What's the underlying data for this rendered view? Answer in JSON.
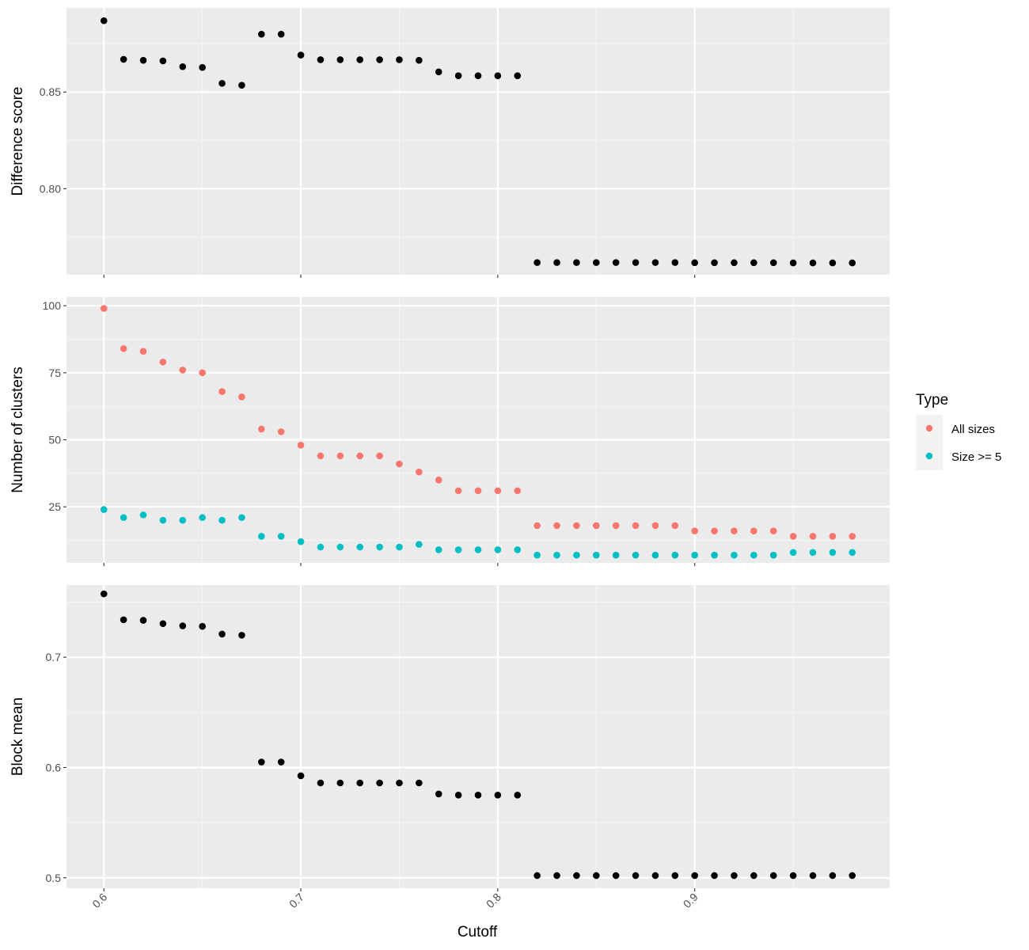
{
  "colors": {
    "panel_bg": "#ebebeb",
    "grid_major": "#ffffff",
    "grid_minor": "#f5f5f5",
    "tick": "#333333",
    "all_sizes": "#f8766d",
    "size_ge_5": "#00bfc4",
    "black_points": "#000000"
  },
  "chart_data": [
    {
      "type": "scatter",
      "panel": "top",
      "ylabel": "Difference score",
      "ylim": [
        0.7555,
        0.8935
      ],
      "yticks": [
        0.8,
        0.85
      ],
      "ytick_labels": [
        "0.80",
        "0.85"
      ],
      "x": [
        0.6,
        0.61,
        0.62,
        0.63,
        0.64,
        0.65,
        0.66,
        0.67,
        0.68,
        0.69,
        0.7,
        0.71,
        0.72,
        0.73,
        0.74,
        0.75,
        0.76,
        0.77,
        0.78,
        0.79,
        0.8,
        0.81,
        0.82,
        0.83,
        0.84,
        0.85,
        0.86,
        0.87,
        0.88,
        0.89,
        0.9,
        0.91,
        0.92,
        0.93,
        0.94,
        0.95,
        0.96,
        0.97,
        0.98
      ],
      "series": [
        {
          "color_key": "black_points",
          "values": [
            0.8869,
            0.8669,
            0.8664,
            0.8661,
            0.8631,
            0.8627,
            0.8545,
            0.8535,
            0.8799,
            0.8799,
            0.8691,
            0.8667,
            0.8667,
            0.8667,
            0.8667,
            0.8667,
            0.8664,
            0.8604,
            0.8584,
            0.8584,
            0.8584,
            0.8584,
            0.7618,
            0.7618,
            0.7618,
            0.7618,
            0.7618,
            0.7618,
            0.7618,
            0.7618,
            0.7617,
            0.7617,
            0.7617,
            0.7617,
            0.7617,
            0.7616,
            0.7616,
            0.7616,
            0.7616
          ]
        }
      ]
    },
    {
      "type": "scatter",
      "panel": "middle",
      "ylabel": "Number of clusters",
      "ylim": [
        4.1,
        103.3
      ],
      "yticks": [
        25,
        50,
        75,
        100
      ],
      "ytick_labels": [
        "25",
        "50",
        "75",
        "100"
      ],
      "x": [
        0.6,
        0.61,
        0.62,
        0.63,
        0.64,
        0.65,
        0.66,
        0.67,
        0.68,
        0.69,
        0.7,
        0.71,
        0.72,
        0.73,
        0.74,
        0.75,
        0.76,
        0.77,
        0.78,
        0.79,
        0.8,
        0.81,
        0.82,
        0.83,
        0.84,
        0.85,
        0.86,
        0.87,
        0.88,
        0.89,
        0.9,
        0.91,
        0.92,
        0.93,
        0.94,
        0.95,
        0.96,
        0.97,
        0.98
      ],
      "series": [
        {
          "name": "All sizes",
          "color_key": "all_sizes",
          "values": [
            99,
            84,
            83,
            79,
            76,
            75,
            68,
            66,
            54,
            53,
            48,
            44,
            44,
            44,
            44,
            41,
            38,
            35,
            31,
            31,
            31,
            31,
            18,
            18,
            18,
            18,
            18,
            18,
            18,
            18,
            16,
            16,
            16,
            16,
            16,
            14,
            14,
            14,
            14
          ]
        },
        {
          "name": "Size >= 5",
          "color_key": "size_ge_5",
          "values": [
            24,
            21,
            22,
            20,
            20,
            21,
            20,
            21,
            14,
            14,
            12,
            10,
            10,
            10,
            10,
            10,
            11,
            9,
            9,
            9,
            9,
            9,
            7,
            7,
            7,
            7,
            7,
            7,
            7,
            7,
            7,
            7,
            7,
            7,
            7,
            8,
            8,
            8,
            8
          ]
        }
      ]
    },
    {
      "type": "scatter",
      "panel": "bottom",
      "ylabel": "Block mean",
      "xlabel": "Cutoff",
      "ylim": [
        0.4905,
        0.7655
      ],
      "yticks": [
        0.5,
        0.6,
        0.7
      ],
      "ytick_labels": [
        "0.5",
        "0.6",
        "0.7"
      ],
      "xticks": [
        0.6,
        0.7,
        0.8,
        0.9
      ],
      "xtick_labels": [
        "0.6",
        "0.7",
        "0.8",
        "0.9"
      ],
      "xlim": [
        0.581,
        0.999
      ],
      "x": [
        0.6,
        0.61,
        0.62,
        0.63,
        0.64,
        0.65,
        0.66,
        0.67,
        0.68,
        0.69,
        0.7,
        0.71,
        0.72,
        0.73,
        0.74,
        0.75,
        0.76,
        0.77,
        0.78,
        0.79,
        0.8,
        0.81,
        0.82,
        0.83,
        0.84,
        0.85,
        0.86,
        0.87,
        0.88,
        0.89,
        0.9,
        0.91,
        0.92,
        0.93,
        0.94,
        0.95,
        0.96,
        0.97,
        0.98
      ],
      "series": [
        {
          "color_key": "black_points",
          "values": [
            0.7575,
            0.734,
            0.7335,
            0.7305,
            0.7285,
            0.728,
            0.721,
            0.72,
            0.605,
            0.605,
            0.5925,
            0.586,
            0.586,
            0.586,
            0.586,
            0.586,
            0.586,
            0.576,
            0.575,
            0.575,
            0.575,
            0.575,
            0.502,
            0.502,
            0.502,
            0.502,
            0.502,
            0.502,
            0.502,
            0.502,
            0.502,
            0.502,
            0.502,
            0.502,
            0.502,
            0.502,
            0.502,
            0.502,
            0.502
          ]
        }
      ]
    }
  ],
  "legend": {
    "title": "Type",
    "items": [
      {
        "label": "All sizes",
        "color_key": "all_sizes"
      },
      {
        "label": "Size >= 5",
        "color_key": "size_ge_5"
      }
    ]
  }
}
